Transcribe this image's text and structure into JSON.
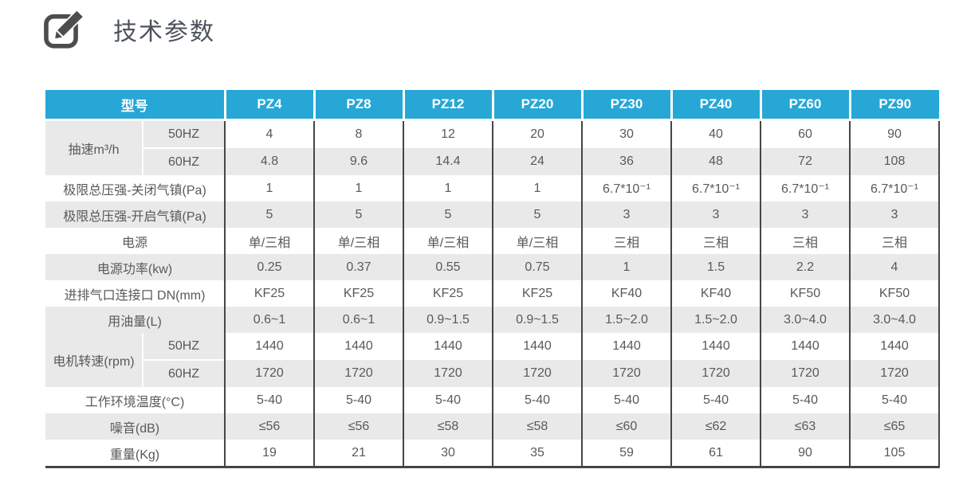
{
  "page": {
    "title": "技术参数",
    "icon": "edit-pencil-icon"
  },
  "colors": {
    "header_bg": "#26A7D6",
    "stripe": "#E9E9E9",
    "border_dark": "#464646",
    "text": "#595959",
    "header_text": "#FFFFFF",
    "title_color": "#4D535C"
  },
  "table": {
    "model_header": "型号",
    "models": [
      "PZ4",
      "PZ8",
      "PZ12",
      "PZ20",
      "PZ30",
      "PZ40",
      "PZ60",
      "PZ90"
    ],
    "rows": [
      {
        "type": "group",
        "label": "抽速m³/h",
        "subrows": [
          {
            "sub": "50HZ",
            "values": [
              "4",
              "8",
              "12",
              "20",
              "30",
              "40",
              "60",
              "90"
            ]
          },
          {
            "sub": "60HZ",
            "values": [
              "4.8",
              "9.6",
              "14.4",
              "24",
              "36",
              "48",
              "72",
              "108"
            ]
          }
        ]
      },
      {
        "type": "single",
        "label": "极限总压强-关闭气镇(Pa)",
        "values": [
          "1",
          "1",
          "1",
          "1",
          "6.7*10⁻¹",
          "6.7*10⁻¹",
          "6.7*10⁻¹",
          "6.7*10⁻¹"
        ]
      },
      {
        "type": "single",
        "label": "极限总压强-开启气镇(Pa)",
        "values": [
          "5",
          "5",
          "5",
          "5",
          "3",
          "3",
          "3",
          "3"
        ]
      },
      {
        "type": "single",
        "label": "电源",
        "values": [
          "单/三相",
          "单/三相",
          "单/三相",
          "单/三相",
          "三相",
          "三相",
          "三相",
          "三相"
        ]
      },
      {
        "type": "single",
        "label": "电源功率(kw)",
        "values": [
          "0.25",
          "0.37",
          "0.55",
          "0.75",
          "1",
          "1.5",
          "2.2",
          "4"
        ]
      },
      {
        "type": "single",
        "label": "进排气口连接口 DN(mm)",
        "values": [
          "KF25",
          "KF25",
          "KF25",
          "KF25",
          "KF40",
          "KF40",
          "KF50",
          "KF50"
        ]
      },
      {
        "type": "single",
        "label": "用油量(L)",
        "values": [
          "0.6~1",
          "0.6~1",
          "0.9~1.5",
          "0.9~1.5",
          "1.5~2.0",
          "1.5~2.0",
          "3.0~4.0",
          "3.0~4.0"
        ]
      },
      {
        "type": "group",
        "label": "电机转速(rpm)",
        "subrows": [
          {
            "sub": "50HZ",
            "values": [
              "1440",
              "1440",
              "1440",
              "1440",
              "1440",
              "1440",
              "1440",
              "1440"
            ]
          },
          {
            "sub": "60HZ",
            "values": [
              "1720",
              "1720",
              "1720",
              "1720",
              "1720",
              "1720",
              "1720",
              "1720"
            ]
          }
        ]
      },
      {
        "type": "single",
        "label": "工作环境温度(°C)",
        "values": [
          "5-40",
          "5-40",
          "5-40",
          "5-40",
          "5-40",
          "5-40",
          "5-40",
          "5-40"
        ]
      },
      {
        "type": "single",
        "label": "噪音(dB)",
        "values": [
          "≤56",
          "≤56",
          "≤58",
          "≤58",
          "≤60",
          "≤62",
          "≤63",
          "≤65"
        ]
      },
      {
        "type": "single",
        "label": "重量(Kg)",
        "values": [
          "19",
          "21",
          "30",
          "35",
          "59",
          "61",
          "90",
          "105"
        ]
      }
    ]
  }
}
